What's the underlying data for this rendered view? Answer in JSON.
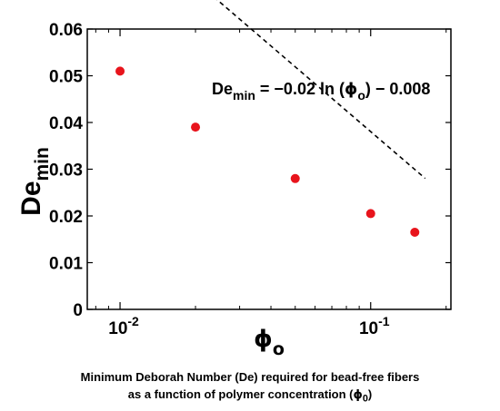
{
  "chart_data": {
    "type": "scatter",
    "xscale": "log",
    "xlim": [
      0.0074,
      0.209
    ],
    "ylim": [
      0,
      0.06
    ],
    "x_ticks": [
      {
        "value": 0.01,
        "base": "10",
        "exp": "-2"
      },
      {
        "value": 0.1,
        "base": "10",
        "exp": "-1"
      }
    ],
    "y_ticks": [
      "0",
      "0.01",
      "0.02",
      "0.03",
      "0.04",
      "0.05",
      "0.06"
    ],
    "xlabel": {
      "symbol": "ϕ",
      "sub": "o"
    },
    "ylabel": {
      "main": "De",
      "sub": "min"
    },
    "points": [
      {
        "x": 0.01,
        "y": 0.051
      },
      {
        "x": 0.02,
        "y": 0.039
      },
      {
        "x": 0.05,
        "y": 0.028
      },
      {
        "x": 0.1,
        "y": 0.0205
      },
      {
        "x": 0.15,
        "y": 0.0165
      }
    ],
    "fit": {
      "a": -0.02,
      "b": -0.008,
      "x_range": [
        0.0095,
        0.165
      ],
      "label": {
        "lhs": "De",
        "lhs_sub": "min",
        "part1": " = −0.02 ln (",
        "phi": "ϕ",
        "phi_sub": "o",
        "part2": ") − 0.008"
      }
    },
    "marker_color": "#e8141c",
    "line_color": "#000000",
    "grid": false
  },
  "caption": {
    "line1": "Minimum Deborah Number (De)  required for bead-free fibers",
    "line2_prefix": "as a function of polymer concentration (",
    "line2_symbol": "ϕ",
    "line2_sub": "0",
    "line2_suffix": ")"
  }
}
